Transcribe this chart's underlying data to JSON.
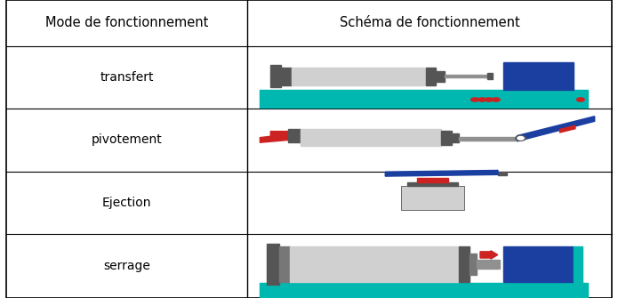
{
  "col_headers": [
    "Mode de fonctionnement",
    "Schéma de fonctionnement"
  ],
  "rows": [
    "transfert",
    "pivotement",
    "Ejection",
    "serrage"
  ],
  "fig_width": 6.95,
  "fig_height": 3.35,
  "bg_color": "#ffffff",
  "border_color": "#000000",
  "header_fontsize": 10.5,
  "row_fontsize": 10,
  "col_split": 0.4,
  "teal": "#00b8b0",
  "dark_gray": "#555555",
  "light_gray": "#d0d0d0",
  "med_gray": "#909090",
  "blue": "#1a3fa0",
  "red": "#cc2222",
  "row_tops": [
    1.0,
    0.845,
    0.635,
    0.425,
    0.215,
    0.0
  ]
}
